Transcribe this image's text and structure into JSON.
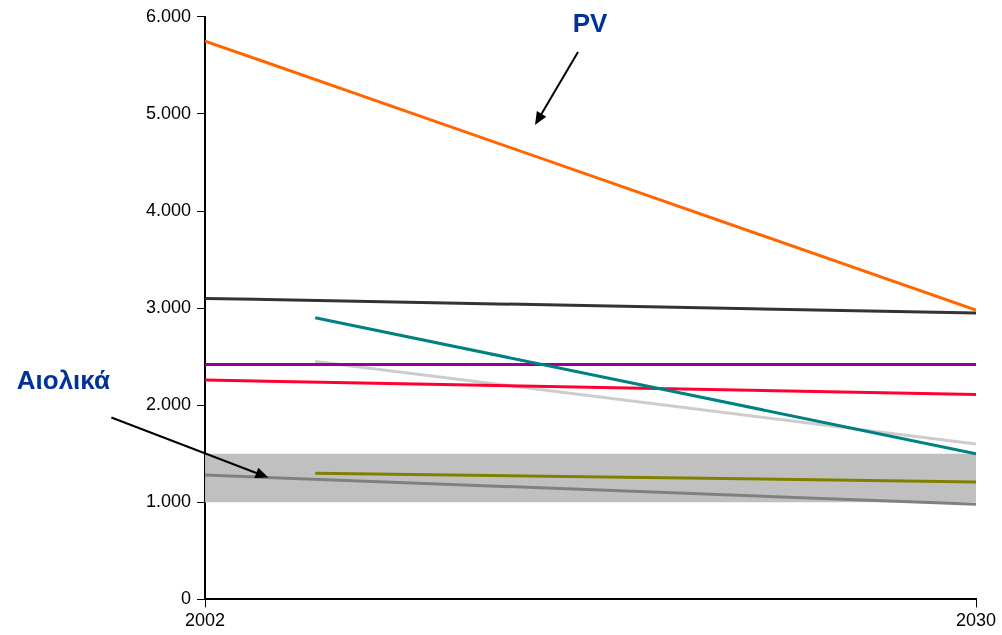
{
  "chart_data": {
    "type": "line",
    "xlim": [
      2002,
      2030
    ],
    "xticks": [
      2002,
      2030
    ],
    "ylim": [
      0,
      6000
    ],
    "yticks": [
      0,
      {
        "value": 1000,
        "label": "1.000"
      },
      {
        "value": 2000,
        "label": "2.000"
      },
      {
        "value": 3000,
        "label": "3.000"
      },
      {
        "value": 4000,
        "label": "4.000"
      },
      {
        "value": 5000,
        "label": "5.000"
      },
      {
        "value": 6000,
        "label": "6.000"
      }
    ],
    "grid": false,
    "legend": false,
    "marker": "none",
    "line_style": "solid",
    "bands": [
      {
        "axis": "y",
        "from": 1000,
        "to": 1500,
        "color": "#c0c0c0"
      }
    ],
    "annotations": [
      "PV",
      {
        "text": "Αιολικά",
        "x": 2004.3,
        "y": 1255
      }
    ],
    "series": [
      {
        "color": "#ff6600",
        "x": [
          2002,
          2030
        ],
        "values": [
          5750,
          2980
        ]
      },
      {
        "color": "#333333",
        "x": [
          2002,
          2030
        ],
        "values": [
          3100,
          2950
        ]
      },
      {
        "color": "#008080",
        "x": [
          2006,
          2030
        ],
        "values": [
          2900,
          1500
        ]
      },
      {
        "color": "#990099",
        "x": [
          2002,
          2030
        ],
        "values": [
          2420,
          2420
        ]
      },
      {
        "color": "#ff0033",
        "x": [
          2002,
          2030
        ],
        "values": [
          2260,
          2110
        ]
      },
      {
        "color": "#cccccc",
        "x": [
          2006,
          2030
        ],
        "values": [
          2450,
          1600
        ]
      },
      {
        "color": "#808000",
        "x": [
          2006,
          2030
        ],
        "values": [
          1300,
          1210
        ]
      },
      {
        "color": "#808080",
        "x": [
          2002,
          2030
        ],
        "values": [
          1280,
          980
        ]
      }
    ]
  }
}
